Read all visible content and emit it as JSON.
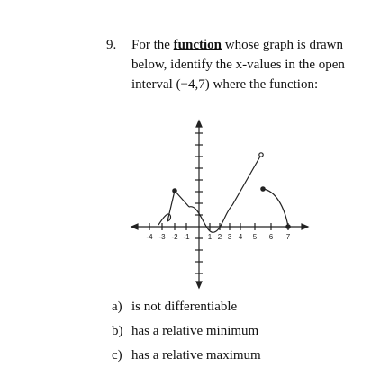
{
  "question": {
    "number": "9.",
    "prefix": "For the",
    "keyword": "function",
    "text": "whose graph is drawn below, identify the x-values in the open interval (−4,7) where the function:"
  },
  "graph": {
    "x_labels": [
      "-4",
      "-3",
      "-2",
      "-1",
      "1",
      "2",
      "3",
      "4",
      "5",
      "6",
      "7"
    ]
  },
  "parts": [
    {
      "label": "a)",
      "text": "is not differentiable"
    },
    {
      "label": "b)",
      "text": "has a relative minimum"
    },
    {
      "label": "c)",
      "text": "has a relative maximum"
    }
  ]
}
